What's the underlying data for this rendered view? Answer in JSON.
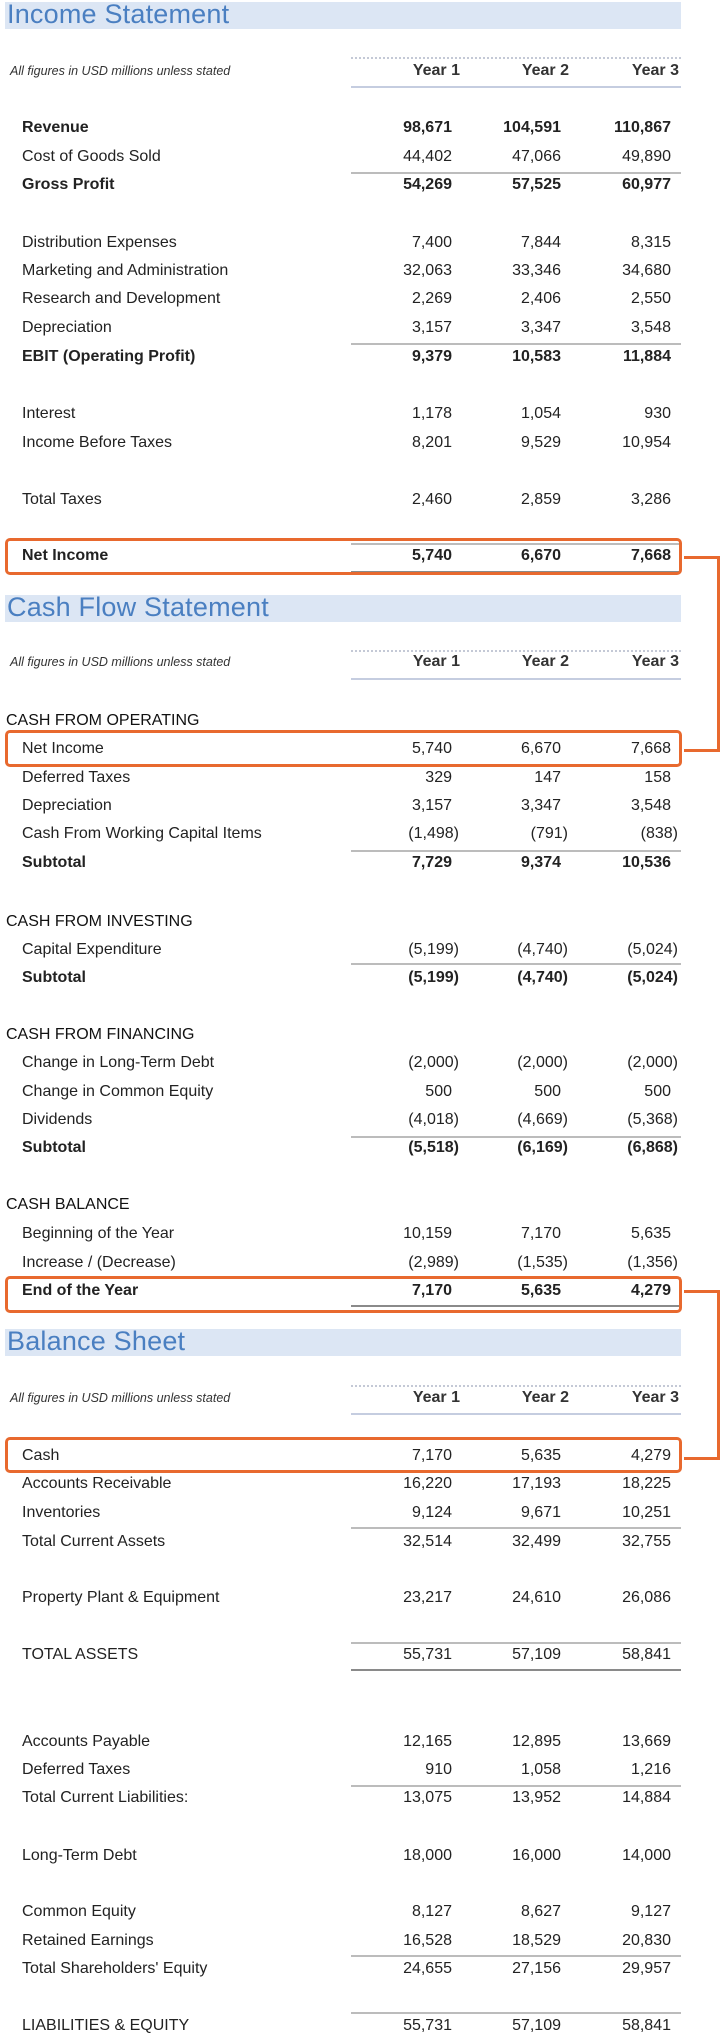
{
  "accent_color": "#e8692e",
  "title_color": "#4a7fc1",
  "title_bg": "#dce6f4",
  "income_statement": {
    "title": "Income Statement",
    "note": "All figures in USD millions unless stated",
    "years": [
      "Year 1",
      "Year 2",
      "Year 3"
    ],
    "rows": [
      {
        "label": "Revenue",
        "values": [
          "98,671",
          "104,591",
          "110,867"
        ]
      },
      {
        "label": "Cost of Goods Sold",
        "values": [
          "44,402",
          "47,066",
          "49,890"
        ]
      },
      {
        "label": "Gross Profit",
        "values": [
          "54,269",
          "57,525",
          "60,977"
        ]
      },
      {
        "label": "Distribution Expenses",
        "values": [
          "7,400",
          "7,844",
          "8,315"
        ]
      },
      {
        "label": "Marketing and Administration",
        "values": [
          "32,063",
          "33,346",
          "34,680"
        ]
      },
      {
        "label": "Research and Development",
        "values": [
          "2,269",
          "2,406",
          "2,550"
        ]
      },
      {
        "label": "Depreciation",
        "values": [
          "3,157",
          "3,347",
          "3,548"
        ]
      },
      {
        "label": "EBIT (Operating Profit)",
        "values": [
          "9,379",
          "10,583",
          "11,884"
        ]
      },
      {
        "label": "Interest",
        "values": [
          "1,178",
          "1,054",
          "930"
        ]
      },
      {
        "label": "Income Before Taxes",
        "values": [
          "8,201",
          "9,529",
          "10,954"
        ]
      },
      {
        "label": "Total Taxes",
        "values": [
          "2,460",
          "2,859",
          "3,286"
        ]
      },
      {
        "label": "Net Income",
        "values": [
          "5,740",
          "6,670",
          "7,668"
        ]
      }
    ]
  },
  "cash_flow_statement": {
    "title": "Cash Flow Statement",
    "note": "All figures in USD millions unless stated",
    "years": [
      "Year 1",
      "Year 2",
      "Year 3"
    ],
    "rows": [
      {
        "label": "CASH FROM OPERATING",
        "values": []
      },
      {
        "label": "Net Income",
        "values": [
          "5,740",
          "6,670",
          "7,668"
        ]
      },
      {
        "label": "Deferred Taxes",
        "values": [
          "329",
          "147",
          "158"
        ]
      },
      {
        "label": "Depreciation",
        "values": [
          "3,157",
          "3,347",
          "3,548"
        ]
      },
      {
        "label": "Cash From Working Capital Items",
        "values": [
          "(1,498)",
          "(791)",
          "(838)"
        ]
      },
      {
        "label": "Subtotal",
        "values": [
          "7,729",
          "9,374",
          "10,536"
        ]
      },
      {
        "label": "CASH FROM INVESTING",
        "values": []
      },
      {
        "label": "Capital Expenditure",
        "values": [
          "(5,199)",
          "(4,740)",
          "(5,024)"
        ]
      },
      {
        "label": "Subtotal",
        "values": [
          "(5,199)",
          "(4,740)",
          "(5,024)"
        ]
      },
      {
        "label": "CASH FROM FINANCING",
        "values": []
      },
      {
        "label": "Change in Long-Term Debt",
        "values": [
          "(2,000)",
          "(2,000)",
          "(2,000)"
        ]
      },
      {
        "label": "Change in Common Equity",
        "values": [
          "500",
          "500",
          "500"
        ]
      },
      {
        "label": "Dividends",
        "values": [
          "(4,018)",
          "(4,669)",
          "(5,368)"
        ]
      },
      {
        "label": "Subtotal",
        "values": [
          "(5,518)",
          "(6,169)",
          "(6,868)"
        ]
      },
      {
        "label": "CASH BALANCE",
        "values": []
      },
      {
        "label": "Beginning of the Year",
        "values": [
          "10,159",
          "7,170",
          "5,635"
        ]
      },
      {
        "label": "Increase / (Decrease)",
        "values": [
          "(2,989)",
          "(1,535)",
          "(1,356)"
        ]
      },
      {
        "label": "End of the Year",
        "values": [
          "7,170",
          "5,635",
          "4,279"
        ]
      }
    ]
  },
  "balance_sheet": {
    "title": "Balance Sheet",
    "note": "All figures in USD millions unless stated",
    "years": [
      "Year 1",
      "Year 2",
      "Year 3"
    ],
    "rows": [
      {
        "label": "Cash",
        "values": [
          "7,170",
          "5,635",
          "4,279"
        ]
      },
      {
        "label": "Accounts Receivable",
        "values": [
          "16,220",
          "17,193",
          "18,225"
        ]
      },
      {
        "label": "Inventories",
        "values": [
          "9,124",
          "9,671",
          "10,251"
        ]
      },
      {
        "label": "Total Current Assets",
        "values": [
          "32,514",
          "32,499",
          "32,755"
        ]
      },
      {
        "label": "Property Plant & Equipment",
        "values": [
          "23,217",
          "24,610",
          "26,086"
        ]
      },
      {
        "label": "TOTAL ASSETS",
        "values": [
          "55,731",
          "57,109",
          "58,841"
        ]
      },
      {
        "label": "Accounts Payable",
        "values": [
          "12,165",
          "12,895",
          "13,669"
        ]
      },
      {
        "label": "Deferred Taxes",
        "values": [
          "910",
          "1,058",
          "1,216"
        ]
      },
      {
        "label": "Total Current Liabilities:",
        "values": [
          "13,075",
          "13,952",
          "14,884"
        ]
      },
      {
        "label": "Long-Term Debt",
        "values": [
          "18,000",
          "16,000",
          "14,000"
        ]
      },
      {
        "label": "Common Equity",
        "values": [
          "8,127",
          "8,627",
          "9,127"
        ]
      },
      {
        "label": "Retained Earnings",
        "values": [
          "16,528",
          "18,529",
          "20,830"
        ]
      },
      {
        "label": "Total Shareholders' Equity",
        "values": [
          "24,655",
          "27,156",
          "29,957"
        ]
      },
      {
        "label": "LIABILITIES & EQUITY",
        "values": [
          "55,731",
          "57,109",
          "58,841"
        ]
      }
    ]
  }
}
